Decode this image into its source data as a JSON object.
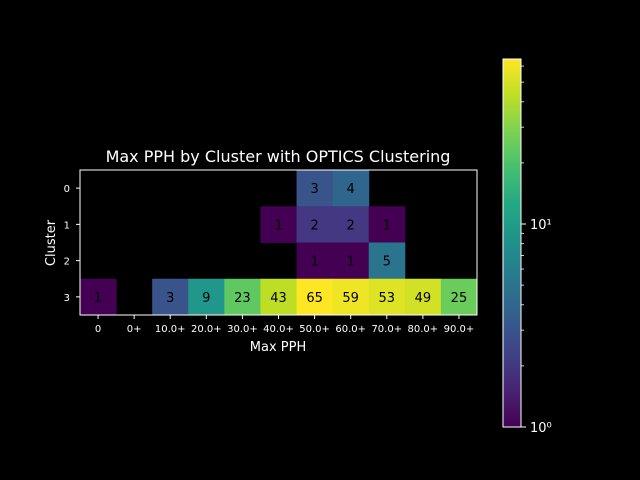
{
  "chart_data": {
    "type": "heatmap",
    "title": "Max PPH by Cluster with OPTICS Clustering",
    "xlabel": "Max PPH",
    "ylabel": "Cluster",
    "x_categories": [
      "0",
      "0+",
      "10.0+",
      "20.0+",
      "30.0+",
      "40.0+",
      "50.0+",
      "60.0+",
      "70.0+",
      "80.0+",
      "90.0+"
    ],
    "y_categories": [
      "0",
      "1",
      "2",
      "3"
    ],
    "values": [
      [
        null,
        null,
        null,
        null,
        null,
        null,
        3,
        4,
        null,
        null,
        null
      ],
      [
        null,
        null,
        null,
        null,
        null,
        1,
        2,
        2,
        1,
        null,
        null
      ],
      [
        null,
        null,
        null,
        null,
        null,
        null,
        1,
        1,
        5,
        null,
        null
      ],
      [
        1,
        null,
        3,
        9,
        23,
        43,
        65,
        59,
        53,
        49,
        25
      ]
    ],
    "colormap": "viridis",
    "color_scale": "log",
    "color_range": [
      1,
      65
    ],
    "colorbar_ticks": [
      {
        "value": 1,
        "label": "10⁰"
      },
      {
        "value": 10,
        "label": "10¹"
      }
    ],
    "background_color": "#000000",
    "text_color": "#ffffff",
    "annotation_color": "#000000"
  }
}
